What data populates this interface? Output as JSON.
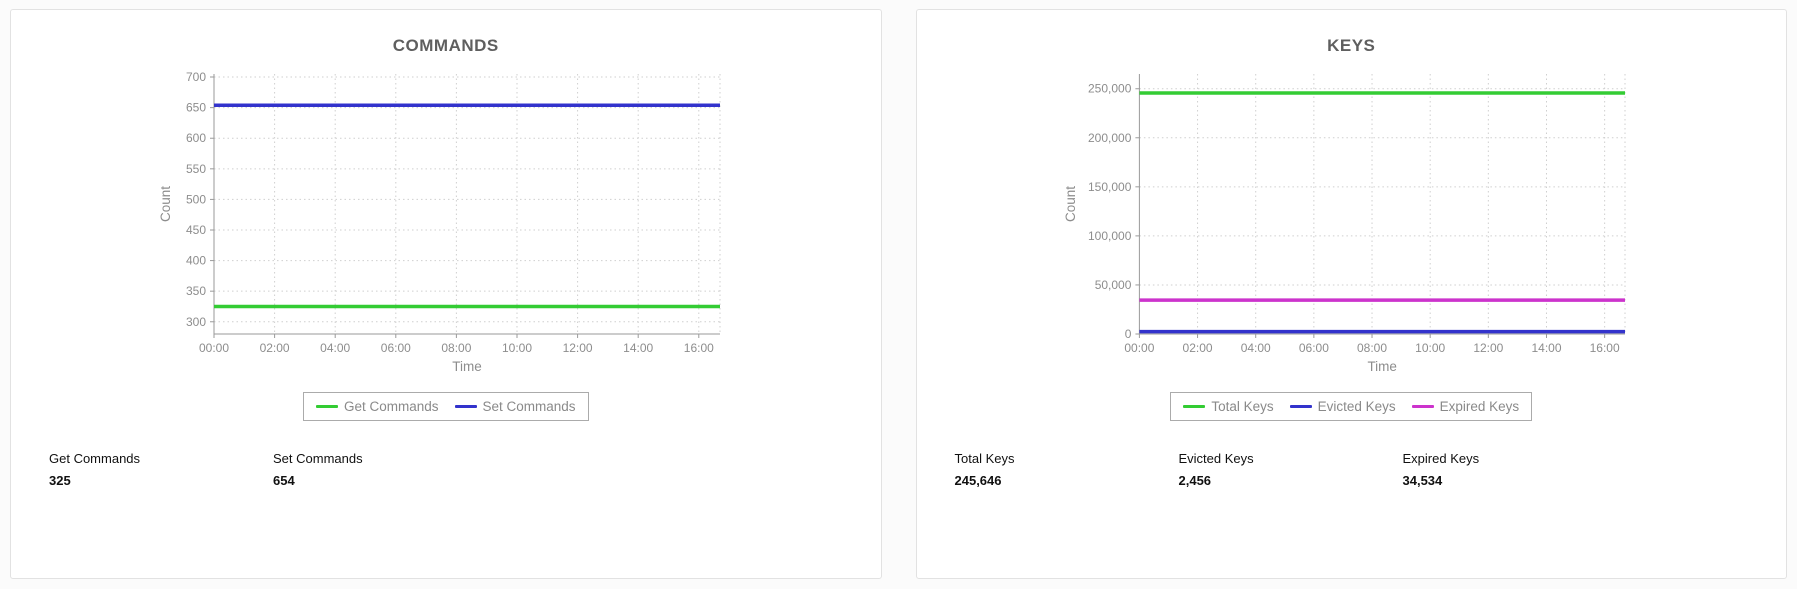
{
  "panels": [
    {
      "title": "COMMANDS",
      "stats": [
        {
          "label": "Get Commands",
          "value": "325"
        },
        {
          "label": "Set Commands",
          "value": "654"
        }
      ]
    },
    {
      "title": "KEYS",
      "stats": [
        {
          "label": "Total Keys",
          "value": "245,646"
        },
        {
          "label": "Evicted Keys",
          "value": "2,456"
        },
        {
          "label": "Expired Keys",
          "value": "34,534"
        }
      ]
    }
  ],
  "chart_data": [
    {
      "type": "line",
      "title": "COMMANDS",
      "xlabel": "Time",
      "ylabel": "Count",
      "x_ticks": [
        "00:00",
        "02:00",
        "04:00",
        "06:00",
        "08:00",
        "10:00",
        "12:00",
        "14:00",
        "16:00"
      ],
      "x_tick_hours": [
        0,
        2,
        4,
        6,
        8,
        10,
        12,
        14,
        16
      ],
      "x_range": [
        0,
        16.7
      ],
      "ylim": [
        280,
        705
      ],
      "y_ticks": [
        300,
        350,
        400,
        450,
        500,
        550,
        600,
        650,
        700
      ],
      "grid": true,
      "legend_position": "bottom",
      "series": [
        {
          "name": "Get Commands",
          "color": "#33cc33",
          "value": 325
        },
        {
          "name": "Set Commands",
          "color": "#3333cc",
          "value": 654
        }
      ]
    },
    {
      "type": "line",
      "title": "KEYS",
      "xlabel": "Time",
      "ylabel": "Count",
      "x_ticks": [
        "00:00",
        "02:00",
        "04:00",
        "06:00",
        "08:00",
        "10:00",
        "12:00",
        "14:00",
        "16:00"
      ],
      "x_tick_hours": [
        0,
        2,
        4,
        6,
        8,
        10,
        12,
        14,
        16
      ],
      "x_range": [
        0,
        16.7
      ],
      "ylim": [
        0,
        265000
      ],
      "y_ticks": [
        0,
        50000,
        100000,
        150000,
        200000,
        250000
      ],
      "grid": true,
      "legend_position": "bottom",
      "series": [
        {
          "name": "Total Keys",
          "color": "#33cc33",
          "value": 245646
        },
        {
          "name": "Evicted Keys",
          "color": "#3333cc",
          "value": 2456
        },
        {
          "name": "Expired Keys",
          "color": "#cc33cc",
          "value": 34534
        }
      ]
    }
  ]
}
